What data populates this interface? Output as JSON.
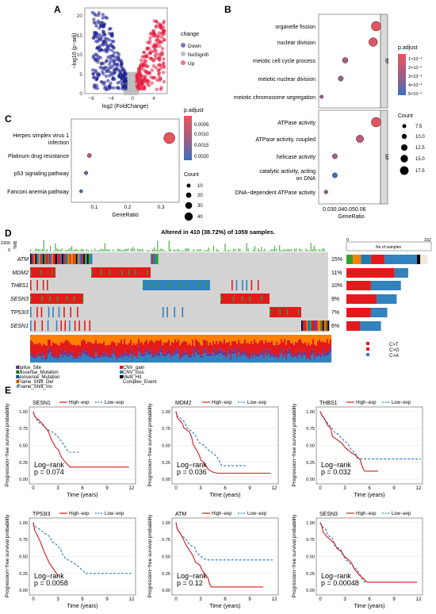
{
  "panel_letters": {
    "A": "A",
    "B": "B",
    "C": "C",
    "D": "D",
    "E": "E"
  },
  "panel_a": {
    "xlabel": "log2 (FoldChange)",
    "ylabel": "−log10 (p−adj)",
    "xticks": [
      "−8",
      "−4",
      "0",
      "4"
    ],
    "yticks": [
      "0",
      "5",
      "10",
      "15",
      "20"
    ],
    "legend_title": "change",
    "legend": [
      {
        "label": "Down",
        "color": "#1a1f8c"
      },
      {
        "label": "NoSignifi",
        "color": "#bdbdbd"
      },
      {
        "label": "Up",
        "color": "#e41a3c"
      }
    ]
  },
  "panel_b": {
    "chart_data": {
      "type": "scatter",
      "xlabel": "GeneRatio",
      "xticks": [
        "0.030.040.050.06"
      ],
      "groups": [
        {
          "name": "BP",
          "terms": [
            {
              "term": "organelle fission",
              "ratio": 0.063,
              "padj": 0.0001,
              "count": 17.5
            },
            {
              "term": "nuclear division",
              "ratio": 0.061,
              "padj": 0.00012,
              "count": 16
            },
            {
              "term": "meiotic cell cycle process",
              "ratio": 0.042,
              "padj": 0.00025,
              "count": 11
            },
            {
              "term": "meiotic nuclear division",
              "ratio": 0.039,
              "padj": 0.00028,
              "count": 10
            },
            {
              "term": "meiotic chromosome segregation",
              "ratio": 0.026,
              "padj": 0.0003,
              "count": 7.5
            }
          ]
        },
        {
          "name": "MF",
          "terms": [
            {
              "term": "ATPase activity",
              "ratio": 0.063,
              "padj": 0.0001,
              "count": 17.5
            },
            {
              "term": "ATPase activity, coupled",
              "ratio": 0.052,
              "padj": 0.0002,
              "count": 14
            },
            {
              "term": "helicase activity",
              "ratio": 0.035,
              "padj": 0.00025,
              "count": 10
            },
            {
              "term": "catalytic activity, acting on DNA",
              "ratio": 0.035,
              "padj": 0.0005,
              "count": 10
            },
            {
              "term": "DNA−dependent ATPase activity",
              "ratio": 0.029,
              "padj": 0.0003,
              "count": 8
            }
          ]
        }
      ]
    },
    "padj_title": "p.adjust",
    "padj_ticks": [
      "1×10⁻⁴",
      "2×10⁻⁴",
      "3×10⁻⁴",
      "4×10⁻⁴",
      "5×10⁻⁴"
    ],
    "count_title": "Count",
    "count_ticks": [
      "7.5",
      "10.0",
      "12.5",
      "15.0",
      "17.5"
    ]
  },
  "panel_c": {
    "chart_data": {
      "type": "scatter",
      "xlabel": "GeneRatio",
      "xticks": [
        "0.1",
        "0.2",
        "0.3"
      ],
      "xlim": [
        0.03,
        0.36
      ],
      "terms": [
        {
          "term": "Herpes simplex virus 1 infection",
          "ratio": 0.33,
          "padj": 0.0002,
          "count": 42
        },
        {
          "term": "Platinum drug resistance",
          "ratio": 0.085,
          "padj": 0.0006,
          "count": 12
        },
        {
          "term": "p53 signaling pathway",
          "ratio": 0.075,
          "padj": 0.0016,
          "count": 10
        },
        {
          "term": "Fanconi anemia pathway",
          "ratio": 0.06,
          "padj": 0.0021,
          "count": 8
        }
      ]
    },
    "padj_title": "p.adjust",
    "padj_ticks": [
      "0.0005",
      "0.0010",
      "0.0015",
      "0.0020"
    ],
    "count_title": "Count",
    "count_ticks": [
      "10",
      "20",
      "30",
      "40"
    ]
  },
  "panel_d": {
    "title": "Altered in 410 (38.72%) of 1059 samples.",
    "tmb_label": "TMB",
    "tmb_ticks": [
      "2300",
      "0"
    ],
    "genes": [
      {
        "gene": "ATM",
        "pct": "15%",
        "total": 155
      },
      {
        "gene": "MDM2",
        "pct": "11%",
        "total": 118
      },
      {
        "gene": "THBS1",
        "pct": "10%",
        "total": 104
      },
      {
        "gene": "SESN3",
        "pct": "9%",
        "total": 96
      },
      {
        "gene": "TP53I3",
        "pct": "7%",
        "total": 78
      },
      {
        "gene": "SESN1",
        "pct": "6%",
        "total": 66
      }
    ],
    "bar_axis_title": "No of samples",
    "bar_axis_ticks": [
      "0",
      "162"
    ],
    "variant_legend": [
      {
        "label": "Splice_Site",
        "color": "#6a3d9a"
      },
      {
        "label": "Missense_Mutation",
        "color": "#33a02c"
      },
      {
        "label": "Nonsense_Mutation",
        "color": "#1f78b4"
      },
      {
        "label": "Frame_Shift_Del",
        "color": "#ff7f00"
      },
      {
        "label": "Frame_Shift_Ins",
        "color": "#a6cee3"
      },
      {
        "label": "CNV_gain",
        "color": "#e31a1c"
      },
      {
        "label": "CNV_loss",
        "color": "#3182bd"
      },
      {
        "label": "Multi_Hit",
        "color": "#000000"
      },
      {
        "label": "Complex_Event",
        "color": "#f4f4f4"
      }
    ],
    "titv_legend": [
      {
        "label": "C>T",
        "color": "#e41a1c"
      },
      {
        "label": "C>G",
        "color": "#e31a1c"
      },
      {
        "label": "C>A",
        "color": "#3182bd"
      }
    ]
  },
  "panel_e": {
    "xlabel": "Time (years)",
    "ylabel": "Progression−free survival probability",
    "legend": [
      {
        "label": "High−exp",
        "color": "#d7191c"
      },
      {
        "label": "Low−exp",
        "color": "#2c7bb6"
      }
    ],
    "xticks": [
      "0",
      "3",
      "6",
      "9",
      "12"
    ],
    "yticks": [
      "0.00",
      "0.25",
      "0.50",
      "0.75",
      "1.00"
    ],
    "logrank_label": "Log−rank",
    "plots": [
      {
        "gene": "SESN1",
        "p": "p = 0.074"
      },
      {
        "gene": "MDM2",
        "p": "p = 0.036"
      },
      {
        "gene": "THBS1",
        "p": "p = 0.032"
      },
      {
        "gene": "TP53I3",
        "p": "p = 0.0058"
      },
      {
        "gene": "ATM",
        "p": "p = 0.12"
      },
      {
        "gene": "SESN3",
        "p": "p = 0.00048"
      }
    ]
  }
}
